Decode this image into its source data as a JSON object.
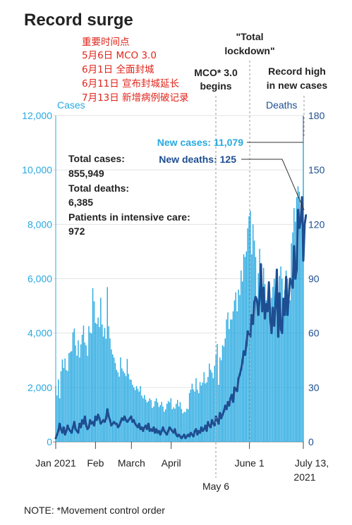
{
  "title": "Record surge",
  "red_notes": [
    "重要时间点",
    "5月6日 MCO 3.0",
    "6月1日 全面封城",
    "6月11日 宣布封城延长",
    "7月13日 新增病例破记录"
  ],
  "axis_left_label": "Cases",
  "axis_right_label": "Deaths",
  "annotations": {
    "total_lockdown": [
      "\"Total",
      "lockdown\""
    ],
    "mco": [
      "MCO* 3.0",
      "begins"
    ],
    "record": [
      "Record high",
      "in new cases"
    ],
    "may6": "May 6"
  },
  "callouts": {
    "new_cases": "New cases: 11,079",
    "new_deaths": "New deaths: 125"
  },
  "stats": {
    "total_cases_label": "Total cases:",
    "total_cases_value": "855,949",
    "total_deaths_label": "Total deaths:",
    "total_deaths_value": "6,385",
    "icu_label": "Patients in intensive care:",
    "icu_value": "972"
  },
  "note": "NOTE: *Movement control order",
  "colors": {
    "cases": "#27a9e1",
    "deaths": "#1e4e91",
    "red_text": "#e0241b"
  },
  "chart_data": {
    "type": "bar",
    "x": {
      "start": "2021-01-01",
      "end": "2021-07-13"
    },
    "x_ticks": [
      {
        "date": "2021-01-01",
        "label": "Jan 2021"
      },
      {
        "date": "2021-02-01",
        "label": "Feb"
      },
      {
        "date": "2021-03-01",
        "label": "March"
      },
      {
        "date": "2021-04-01",
        "label": "April"
      },
      {
        "date": "2021-06-01",
        "label": "June 1"
      },
      {
        "date": "2021-07-13",
        "label": "July 13,"
      }
    ],
    "x_tick_sub": "2021",
    "y_left": {
      "label": "Cases",
      "range": [
        0,
        12000
      ],
      "ticks": [
        "0",
        "2,000",
        "4,000",
        "6,000",
        "8,000",
        "10,000",
        "12,000"
      ]
    },
    "y_right": {
      "label": "Deaths",
      "range": [
        0,
        180
      ],
      "ticks": [
        "0",
        "30",
        "60",
        "90",
        "120",
        "150",
        "180"
      ]
    },
    "series": [
      {
        "name": "New cases",
        "type": "bar",
        "axis": "left",
        "values": [
          2068,
          1704,
          2295,
          1604,
          2593,
          3027,
          2718,
          3069,
          2643,
          2604,
          3263,
          3309,
          3337,
          4029,
          4166,
          3547,
          3170,
          3731,
          3102,
          3585,
          3939,
          4275,
          3650,
          3546,
          3171,
          4255,
          4020,
          3985,
          5651,
          5170,
          4378,
          4337,
          4571,
          4224,
          5300,
          4320,
          3872,
          4192,
          3787,
          5692,
          4251,
          3800,
          3400,
          3215,
          3100,
          2900,
          2650,
          2560,
          2400,
          3105,
          2700,
          2600,
          2525,
          2420,
          3050,
          2500,
          2300,
          2280,
          2100,
          2000,
          1900,
          2050,
          1950,
          1850,
          2050,
          1700,
          1600,
          1720,
          1550,
          1450,
          1500,
          1600,
          1540,
          1250,
          1300,
          1500,
          1600,
          1450,
          1280,
          1350,
          1470,
          1300,
          1110,
          1200,
          1400,
          1500,
          1450,
          1600,
          1200,
          1270,
          1220,
          1400,
          1540,
          1300,
          1460,
          1210,
          1050,
          1100,
          1100,
          1220,
          1200,
          1800,
          1920,
          2140,
          1930,
          1850,
          2340,
          1920,
          1790,
          2200,
          2070,
          2180,
          2560,
          2150,
          2190,
          2390,
          2880,
          2650,
          2550,
          2340,
          2800,
          3200,
          3600,
          2100,
          3100,
          3000,
          3550,
          3510,
          3800,
          4500,
          4760,
          4150,
          4500,
          4500,
          4800,
          5200,
          5500,
          4800,
          5600,
          5400,
          6300,
          5900,
          6900,
          6800,
          7000,
          7857,
          8300,
          8500,
          6900,
          8000,
          7400,
          6800,
          5300,
          6200,
          7100,
          6050,
          5800,
          6400,
          5800,
          5200,
          5300,
          5600,
          4600,
          5300,
          5700,
          6000,
          5200,
          5100,
          5400,
          6100,
          6450,
          6000,
          4750,
          5586,
          6300,
          6000,
          5500,
          5200,
          7300,
          7700,
          8600,
          8100,
          9000,
          9400,
          9200,
          8000,
          8500,
          11079
        ]
      },
      {
        "name": "New deaths",
        "type": "line",
        "axis": "right",
        "values": [
          2,
          4,
          6,
          10,
          7,
          5,
          8,
          4,
          6,
          9,
          7,
          6,
          5,
          8,
          11,
          7,
          6,
          5,
          10,
          8,
          12,
          10,
          14,
          9,
          7,
          8,
          12,
          10,
          11,
          9,
          14,
          12,
          15,
          13,
          10,
          11,
          12,
          11,
          13,
          18,
          14,
          12,
          9,
          10,
          11,
          10,
          10,
          8,
          9,
          11,
          13,
          12,
          14,
          12,
          11,
          12,
          13,
          14,
          11,
          12,
          10,
          9,
          8,
          10,
          7,
          8,
          6,
          8,
          9,
          7,
          10,
          6,
          7,
          6,
          8,
          5,
          7,
          5,
          6,
          4,
          6,
          8,
          6,
          5,
          4,
          6,
          8,
          7,
          6,
          5,
          7,
          4,
          3,
          4,
          3,
          2,
          3,
          4,
          2,
          3,
          4,
          3,
          5,
          4,
          3,
          6,
          7,
          4,
          6,
          5,
          8,
          6,
          7,
          9,
          6,
          11,
          9,
          8,
          12,
          10,
          9,
          14,
          12,
          10,
          16,
          13,
          15,
          17,
          20,
          18,
          22,
          20,
          24,
          26,
          22,
          30,
          29,
          28,
          35,
          37,
          40,
          44,
          50,
          48,
          54,
          61,
          60,
          58,
          70,
          65,
          77,
          80,
          78,
          70,
          79,
          98,
          72,
          85,
          68,
          76,
          72,
          88,
          68,
          60,
          74,
          64,
          75,
          95,
          58,
          82,
          62,
          60,
          79,
          70,
          91,
          70,
          80,
          90,
          88,
          85,
          108,
          90,
          95,
          128,
          118,
          122,
          135,
          100,
          120,
          125
        ]
      }
    ]
  }
}
